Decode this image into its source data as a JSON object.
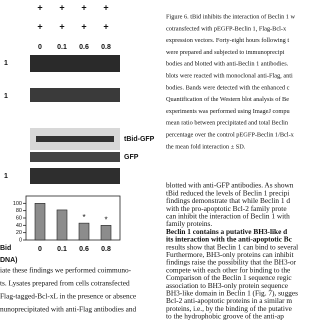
{
  "blot": {
    "plus_rows": [
      [
        "+",
        "+",
        "+",
        "+"
      ],
      [
        "+",
        "+",
        "+",
        "+"
      ]
    ],
    "doses": [
      "0",
      "0.1",
      "0.6",
      "0.8"
    ],
    "band_labels": [
      "1",
      "1",
      "tBid-GFP",
      "GFP",
      "1"
    ]
  },
  "chart_data": {
    "type": "bar",
    "categories": [
      "0",
      "0.1",
      "0.6",
      "0.8"
    ],
    "values": [
      100,
      82,
      46,
      40
    ],
    "color": "#8c8c8c",
    "ylim": [
      0,
      120
    ],
    "yticks": [
      0,
      20,
      40,
      60,
      80,
      100
    ],
    "xlabel_lines": [
      "Bid",
      "DNA)"
    ],
    "annotations": [
      {
        "text": "*",
        "category": "0.6"
      },
      {
        "text": "*",
        "category": "0.8"
      }
    ]
  },
  "caption": {
    "lines": [
      "Figure 6. tBid inhibits the interaction of Beclin 1 w",
      "cotransfected with pEGFP-Beclin 1, Flag-Bcl-x",
      "expression vectors. Forty-eight hours following t",
      "were prepared and subjected to immunoprecipi",
      "bodies and blotted with anti-Beclin 1 antibodies.",
      "blots were reacted with monoclonal anti-Flag, anti",
      "bodies. Bands were detected with the enhanced c",
      "Quantification of the Western blot analysis of Be",
      "experiments was performed using ImageJ compu",
      "mean ratio between precipitated and total Beclin",
      "percentage over the control pEGFP-Beclin 1/Bcl-x",
      "the mean fold interaction ± SD."
    ]
  },
  "body_right": {
    "lines_before": [
      "blotted with anti-GFP antibodies. As shown",
      "tBid reduced the levels of Beclin 1 precipi",
      "findings demonstrate that while Beclin 1 d",
      "with the pro-apoptotic Bcl-2 family prote",
      "can inhibit the interaction of Beclin 1 with",
      "family proteins."
    ],
    "heading_lines": [
      "Beclin 1 contains a putative BH3-like d",
      "its interaction with the anti-apoptotic Bc"
    ],
    "lines_after": [
      "results show that Beclin 1 can bind to several",
      "Furthermore, BH3-only proteins can inhibit",
      "findings raise the possibility that the BH3-or",
      "compete with each other for binding to the",
      "Comparison of the Beclin 1 sequence regic",
      "association to BH3-only protein sequence",
      "BH3-like domain in Beclin 1 (Fig. 7), sugges",
      "Bcl-2 anti-apoptotic proteins in a similar m",
      "proteins, i.e., by the binding of the putative",
      "to the hydrophobic groove of the anti-ap"
    ]
  },
  "body_left": {
    "lines": [
      "iate these findings we performed coimmuno-",
      "ts. Lysates prepared from cells cotransfected",
      "Flag-tagged-Bcl-xL in the presence or absence",
      "nunoprecipitated with anti-Flag antibodies and"
    ]
  }
}
